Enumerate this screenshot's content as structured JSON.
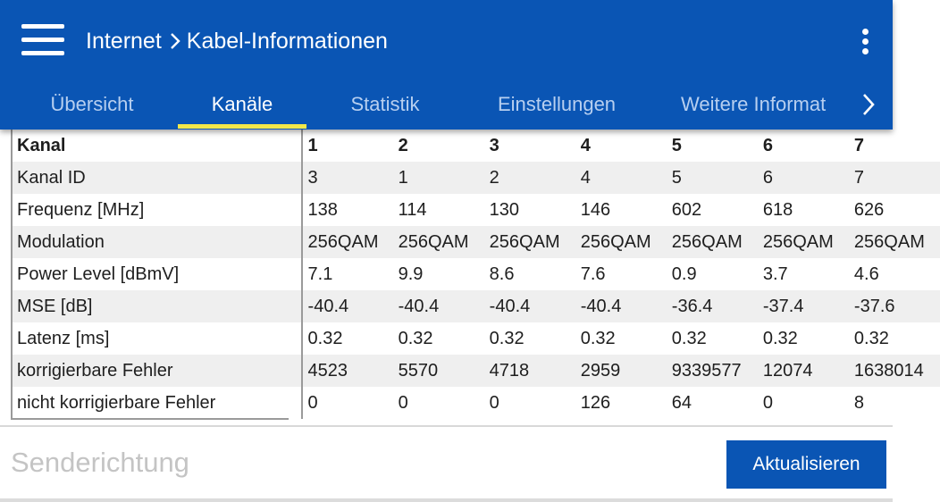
{
  "header": {
    "breadcrumb": [
      "Internet",
      "Kabel-Informationen"
    ],
    "background_color": "#0a55b4",
    "icons": [
      "menu-icon",
      "chevron-right-icon",
      "more-vert-icon"
    ]
  },
  "tabs": [
    {
      "label": "Übersicht",
      "active": false
    },
    {
      "label": "Kanäle",
      "active": true
    },
    {
      "label": "Statistik",
      "active": false
    },
    {
      "label": "Einstellungen",
      "active": false
    },
    {
      "label": "Weitere Informat",
      "active": false
    }
  ],
  "tab_indicator_color": "#f2e84a",
  "channel_table": {
    "header_label": "Kanal",
    "channels": [
      "1",
      "2",
      "3",
      "4",
      "5",
      "6",
      "7"
    ],
    "rows": [
      {
        "label": "Kanal ID",
        "values": [
          "3",
          "1",
          "2",
          "4",
          "5",
          "6",
          "7"
        ]
      },
      {
        "label": "Frequenz [MHz]",
        "values": [
          "138",
          "114",
          "130",
          "146",
          "602",
          "618",
          "626"
        ]
      },
      {
        "label": "Modulation",
        "values": [
          "256QAM",
          "256QAM",
          "256QAM",
          "256QAM",
          "256QAM",
          "256QAM",
          "256QAM"
        ]
      },
      {
        "label": "Power Level [dBmV]",
        "values": [
          "7.1",
          "9.9",
          "8.6",
          "7.6",
          "0.9",
          "3.7",
          "4.6"
        ]
      },
      {
        "label": "MSE [dB]",
        "values": [
          "-40.4",
          "-40.4",
          "-40.4",
          "-40.4",
          "-36.4",
          "-37.4",
          "-37.6"
        ]
      },
      {
        "label": "Latenz [ms]",
        "values": [
          "0.32",
          "0.32",
          "0.32",
          "0.32",
          "0.32",
          "0.32",
          "0.32"
        ]
      },
      {
        "label": "korrigierbare Fehler",
        "values": [
          "4523",
          "5570",
          "4718",
          "2959",
          "9339577",
          "12074",
          "1638014"
        ]
      },
      {
        "label": "nicht korrigierbare Fehler",
        "values": [
          "0",
          "0",
          "0",
          "126",
          "64",
          "0",
          "8"
        ]
      }
    ]
  },
  "footer": {
    "section_title": "Senderichtung",
    "refresh_label": "Aktualisieren"
  }
}
